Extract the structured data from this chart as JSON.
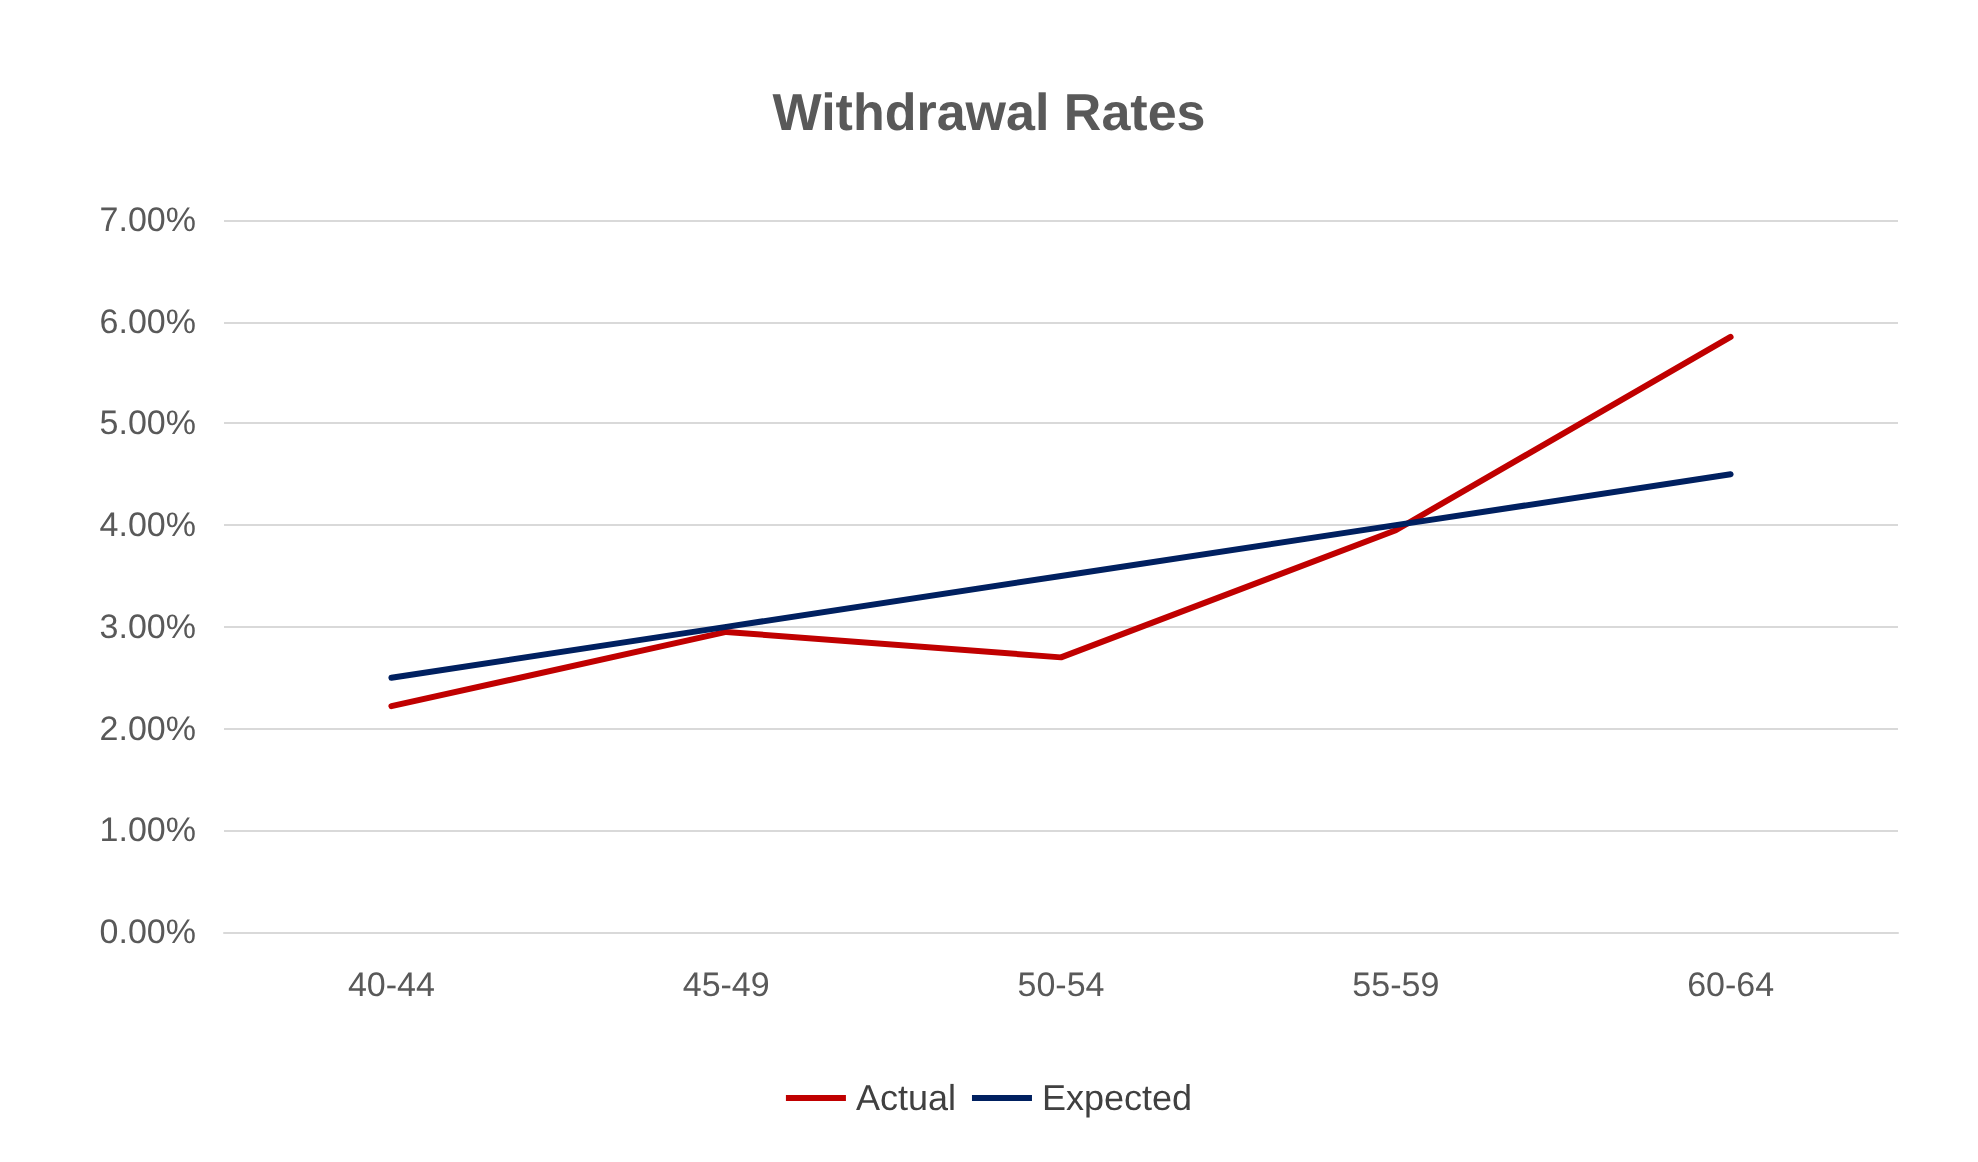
{
  "chart_data": {
    "type": "line",
    "title": "Withdrawal Rates",
    "categories": [
      "40-44",
      "45-49",
      "50-54",
      "55-59",
      "60-64"
    ],
    "series": [
      {
        "name": "Actual",
        "color": "#c00000",
        "values": [
          2.22,
          2.95,
          2.7,
          3.95,
          5.85
        ]
      },
      {
        "name": "Expected",
        "color": "#002060",
        "values": [
          2.5,
          3.0,
          3.5,
          4.0,
          4.5
        ]
      }
    ],
    "ylim": [
      0,
      7
    ],
    "yticks": [
      {
        "value": 0,
        "label": "0.00%"
      },
      {
        "value": 1,
        "label": "1.00%"
      },
      {
        "value": 2,
        "label": "2.00%"
      },
      {
        "value": 3,
        "label": "3.00%"
      },
      {
        "value": 4,
        "label": "4.00%"
      },
      {
        "value": 5,
        "label": "5.00%"
      },
      {
        "value": 6,
        "label": "6.00%"
      },
      {
        "value": 7,
        "label": "7.00%"
      }
    ],
    "grid": "y",
    "legend": "bottom",
    "marker": "none",
    "line_style": "solid"
  }
}
